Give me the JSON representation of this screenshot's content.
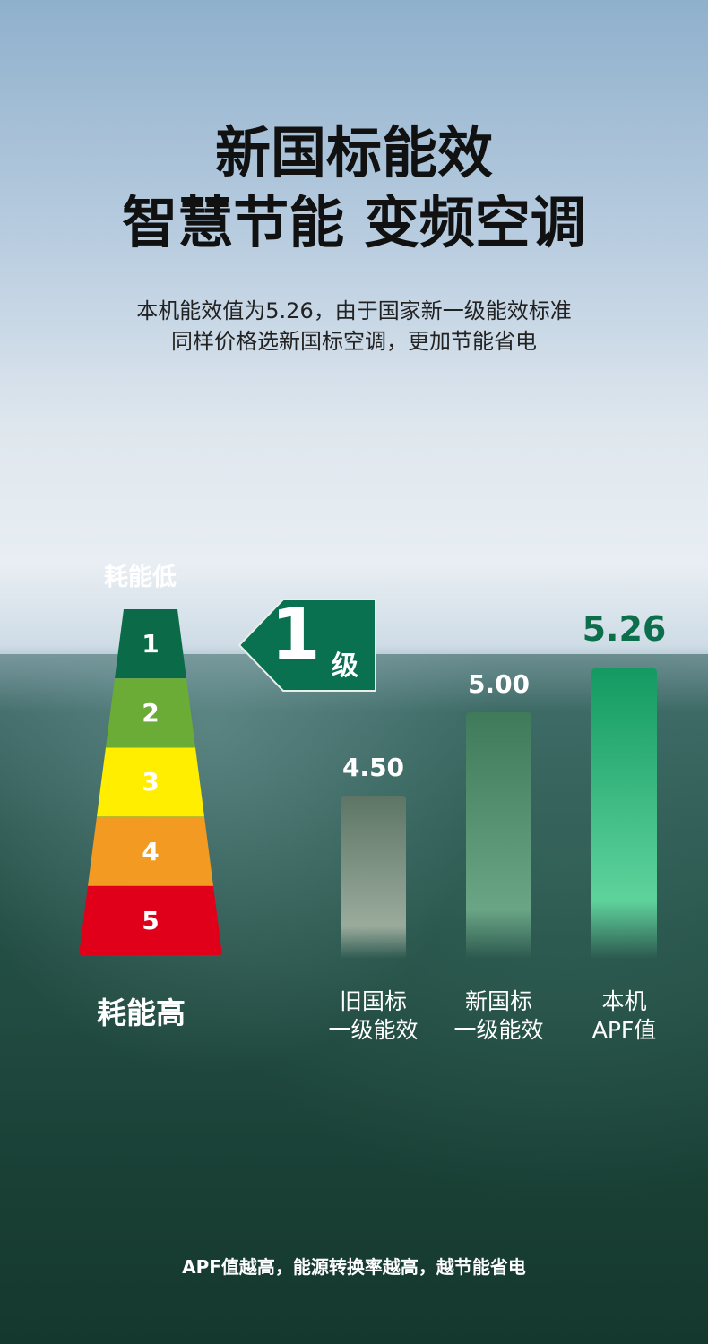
{
  "header": {
    "title_line1": "新国标能效",
    "title_line2": "智慧节能 变频空调",
    "subtitle_line1": "本机能效值为5.26，由于国家新一级能效标准",
    "subtitle_line2": "同样价格选新国标空调，更加节能省电"
  },
  "ladder": {
    "top_label": "耗能低",
    "bottom_label": "耗能高",
    "levels": [
      {
        "label": "1",
        "color": "#0b6b48"
      },
      {
        "label": "2",
        "color": "#6aac35"
      },
      {
        "label": "3",
        "color": "#ffee00"
      },
      {
        "label": "4",
        "color": "#f29a22"
      },
      {
        "label": "5",
        "color": "#e0001a"
      }
    ]
  },
  "badge": {
    "number": "1",
    "unit": "级",
    "color": "#097150"
  },
  "chart_data": {
    "type": "bar",
    "categories": [
      "旧国标\n一级能效",
      "新国标\n一级能效",
      "本机\nAPF值"
    ],
    "category_lines": [
      [
        "旧国标",
        "一级能效"
      ],
      [
        "新国标",
        "一级能效"
      ],
      [
        "本机",
        "APF值"
      ]
    ],
    "values": [
      4.5,
      5.0,
      5.26
    ],
    "value_labels": [
      "4.50",
      "5.00",
      "5.26"
    ],
    "colors": [
      "#5d7565",
      "#3f7a5a",
      "#139a62"
    ],
    "title": "",
    "xlabel": "",
    "ylabel": ""
  },
  "footer": {
    "note": "APF值越高，能源转换率越高，越节能省电"
  }
}
